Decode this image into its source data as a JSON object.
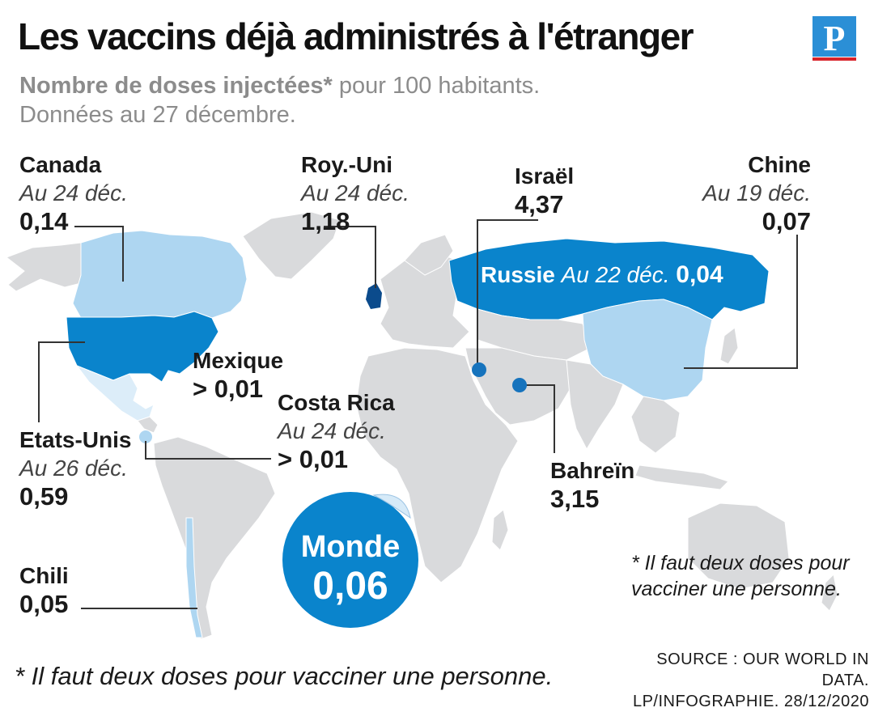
{
  "header": {
    "title": "Les vaccins déjà administrés à l'étranger",
    "subtitle_bold": "Nombre de doses injectées*",
    "subtitle_rest": " pour 100 habitants.",
    "subtitle_line2": "Données au 27 décembre.",
    "logo_letter": "P"
  },
  "colors": {
    "land": "#d9dadc",
    "highlight_dark": "#0a84cc",
    "highlight_light": "#aed6f1",
    "highlight_pale": "#dcedf9",
    "uk": "#0b4b8c",
    "dot": "#1673bd",
    "leader": "#333333"
  },
  "countries": {
    "canada": {
      "name": "Canada",
      "date": "Au 24 déc.",
      "value": "0,14"
    },
    "uk": {
      "name": "Roy.-Uni",
      "date": "Au 24 déc.",
      "value": "1,18"
    },
    "israel": {
      "name": "Israël",
      "value": "4,37"
    },
    "china": {
      "name": "Chine",
      "date": "Au 19 déc.",
      "value": "0,07"
    },
    "russia": {
      "name": "Russie",
      "date": "Au 22 déc.",
      "value": "0,04"
    },
    "mexico": {
      "name": "Mexique",
      "value": "> 0,01"
    },
    "costa_rica": {
      "name": "Costa Rica",
      "date": "Au 24 déc.",
      "value": "> 0,01"
    },
    "usa": {
      "name": "Etats-Unis",
      "date": "Au 26 déc.",
      "value": "0,59"
    },
    "bahrain": {
      "name": "Bahreïn",
      "value": "3,15"
    },
    "chile": {
      "name": "Chili",
      "value": "0,05"
    }
  },
  "world": {
    "name": "Monde",
    "value": "0,06"
  },
  "note_map": "* Il faut deux doses pour vacciner une personne.",
  "footnote": "* Il faut deux doses pour vacciner une personne.",
  "source_line1": "SOURCE : OUR WORLD IN DATA.",
  "source_line2": "LP/INFOGRAPHIE. 28/12/2020"
}
